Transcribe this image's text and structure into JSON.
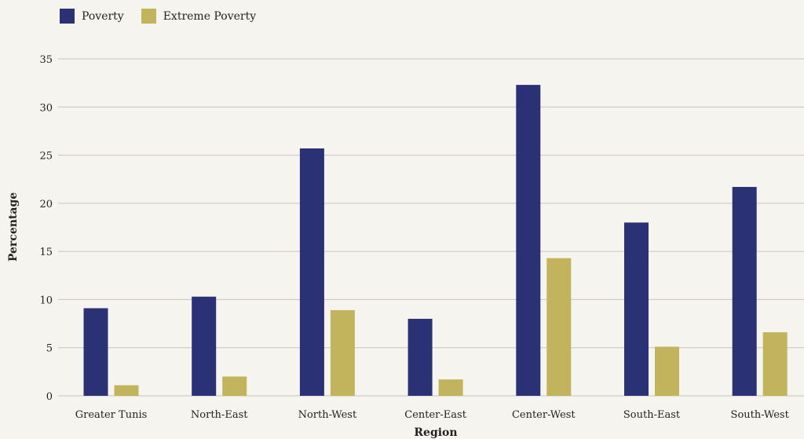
{
  "chart_data": {
    "type": "bar",
    "title": "",
    "xlabel": "Region",
    "ylabel": "Percentage",
    "categories": [
      "Greater Tunis",
      "North-East",
      "North-West",
      "Center-East",
      "Center-West",
      "South-East",
      "South-West"
    ],
    "series": [
      {
        "name": "Poverty",
        "color": "#2a3275",
        "values": [
          9.1,
          10.3,
          25.7,
          8.0,
          32.3,
          18.0,
          21.7
        ]
      },
      {
        "name": "Extreme Poverty",
        "color": "#c2b45c",
        "values": [
          1.1,
          2.0,
          8.9,
          1.7,
          14.3,
          5.1,
          6.6
        ]
      }
    ],
    "ylim": [
      0,
      35
    ],
    "yticks": [
      0,
      5,
      10,
      15,
      20,
      25,
      30,
      35
    ],
    "grid": true,
    "legend_position": "top-left"
  }
}
